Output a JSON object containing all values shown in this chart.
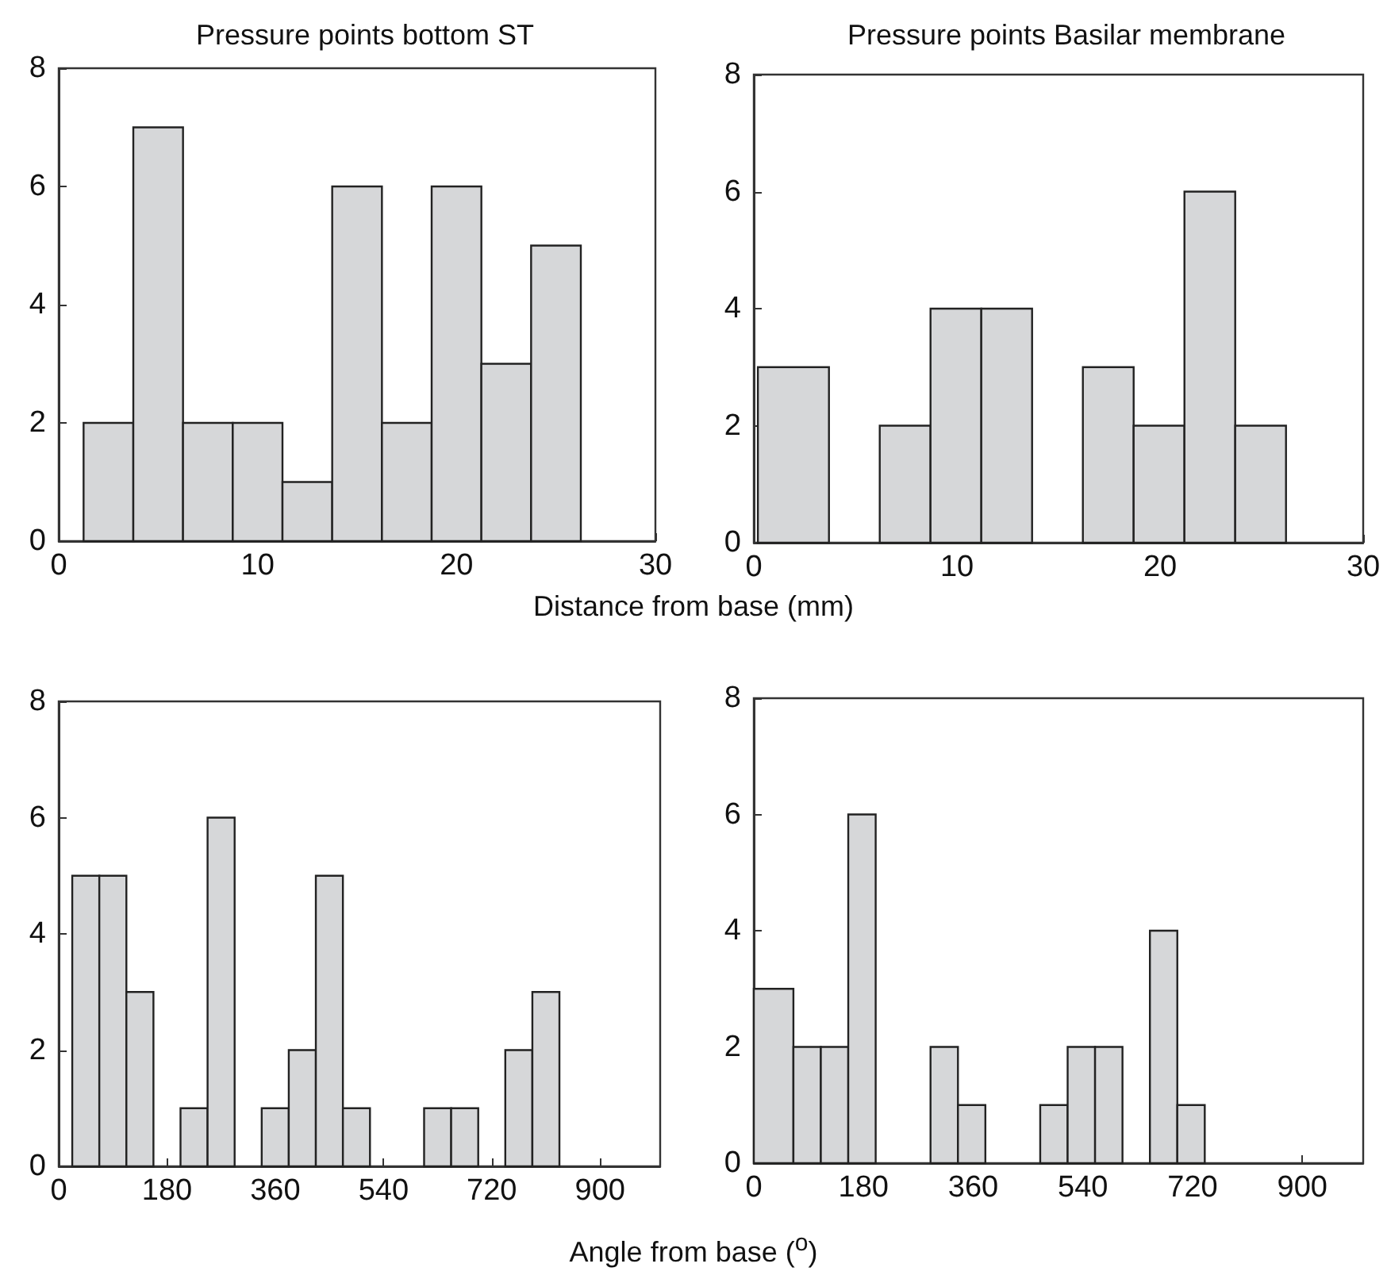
{
  "chart_data": [
    {
      "type": "histogram",
      "title": "Pressure points bottom ST",
      "xlabel": "Distance from base (mm)",
      "color": "#d6d7d9",
      "bins": [
        1.25,
        3.75,
        6.25,
        8.75,
        11.25,
        13.75,
        16.25,
        18.75,
        21.25,
        23.75,
        26.25
      ],
      "values": [
        2,
        7,
        2,
        2,
        1,
        6,
        2,
        6,
        3,
        5
      ],
      "xlim": [
        0,
        30
      ],
      "xticks": [
        0,
        10,
        20,
        30
      ],
      "ylim": [
        0,
        8
      ],
      "yticks": [
        0,
        2,
        4,
        6,
        8
      ]
    },
    {
      "type": "histogram",
      "title": "Pressure points Basilar membrane",
      "color": "#d6d7d9",
      "bins": [
        0.2,
        3.7,
        6.2,
        8.7,
        11.2,
        13.7,
        16.2,
        18.7,
        21.2,
        23.7,
        26.2
      ],
      "values": [
        3,
        0,
        2,
        4,
        4,
        0,
        3,
        2,
        6,
        2
      ],
      "xlim": [
        0,
        30
      ],
      "xticks": [
        0,
        10,
        20,
        30
      ],
      "ylim": [
        0,
        8
      ],
      "yticks": [
        0,
        2,
        4,
        6,
        8
      ]
    },
    {
      "type": "histogram",
      "xlabel": "Angle from base ($^{o}$)",
      "color": "#d6d7d9",
      "bins": [
        22.5,
        67.5,
        112.5,
        157.5,
        202.5,
        247.5,
        292.5,
        337.5,
        382.5,
        427.5,
        472.5,
        517.5,
        607.5,
        652.5,
        697.5,
        742.5,
        787.5,
        832.5
      ],
      "values": [
        5,
        5,
        3,
        0,
        1,
        6,
        0,
        1,
        2,
        5,
        1,
        0,
        1,
        1,
        0,
        2,
        3
      ],
      "xlim": [
        0,
        1000
      ],
      "xticks": [
        0,
        180,
        360,
        540,
        720,
        900
      ],
      "ylim": [
        0,
        8
      ],
      "yticks": [
        0,
        2,
        4,
        6,
        8
      ]
    },
    {
      "type": "histogram",
      "color": "#d6d7d9",
      "bins": [
        0,
        65,
        110,
        155,
        200,
        290,
        335,
        380,
        470,
        515,
        560,
        605,
        650,
        695,
        740
      ],
      "values": [
        3,
        2,
        2,
        6,
        0,
        2,
        1,
        0,
        1,
        2,
        2,
        0,
        4,
        1
      ],
      "xlim": [
        0,
        1000
      ],
      "xticks": [
        0,
        180,
        360,
        540,
        720,
        900
      ],
      "ylim": [
        0,
        8
      ],
      "yticks": [
        0,
        2,
        4,
        6,
        8
      ]
    }
  ]
}
